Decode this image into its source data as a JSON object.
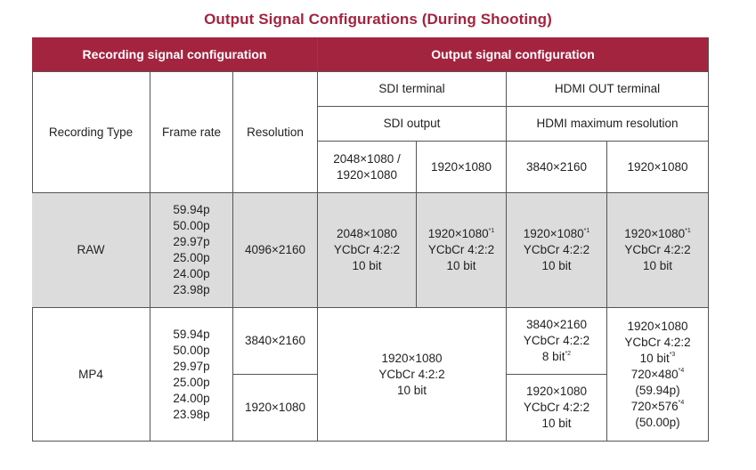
{
  "title": "Output Signal Configurations (During Shooting)",
  "header": {
    "recording_group": "Recording signal configuration",
    "output_group": "Output signal configuration",
    "recording_type": "Recording Type",
    "frame_rate": "Frame rate",
    "resolution": "Resolution",
    "sdi_terminal": "SDI terminal",
    "hdmi_terminal": "HDMI OUT terminal",
    "sdi_output": "SDI output",
    "hdmi_max_resolution": "HDMI maximum resolution",
    "sdi_col1_line1": "2048×1080 /",
    "sdi_col1_line2": "1920×1080",
    "sdi_col2": "1920×1080",
    "hdmi_col1": "3840×2160",
    "hdmi_col2": "1920×1080"
  },
  "rows": {
    "raw": {
      "type": "RAW",
      "frame_rates": [
        "59.94p",
        "50.00p",
        "29.97p",
        "25.00p",
        "24.00p",
        "23.98p"
      ],
      "resolution": "4096×2160",
      "sdi1": {
        "res": "2048×1080",
        "format": "YCbCr 4:2:2",
        "depth": "10 bit"
      },
      "sdi2": {
        "res": "1920×1080",
        "note": "*1",
        "format": "YCbCr 4:2:2",
        "depth": "10 bit"
      },
      "hdmi1": {
        "res": "1920×1080",
        "note": "*1",
        "format": "YCbCr 4:2:2",
        "depth": "10 bit"
      },
      "hdmi2": {
        "res": "1920×1080",
        "note": "*1",
        "format": "YCbCr 4:2:2",
        "depth": "10 bit"
      }
    },
    "mp4": {
      "type": "MP4",
      "frame_rates": [
        "59.94p",
        "50.00p",
        "29.97p",
        "25.00p",
        "24.00p",
        "23.98p"
      ],
      "resolution_a": "3840×2160",
      "resolution_b": "1920×1080",
      "sdi": {
        "res": "1920×1080",
        "format": "YCbCr 4:2:2",
        "depth": "10 bit"
      },
      "hdmi1_a": {
        "res": "3840×2160",
        "format": "YCbCr 4:2:2",
        "depth": "8 bit",
        "note": "*2"
      },
      "hdmi1_b": {
        "res": "1920×1080",
        "format": "YCbCr 4:2:2",
        "depth": "10 bit"
      },
      "hdmi2": {
        "res": "1920×1080",
        "format": "YCbCr 4:2:2",
        "depth": "10 bit",
        "depth_note": "*3",
        "res_ntsc": "720×480",
        "ntsc_note": "*4",
        "rate_ntsc": "(59.94p)",
        "res_pal": "720×576",
        "pal_note": "*4",
        "rate_pal": "(50.00p)"
      }
    }
  }
}
